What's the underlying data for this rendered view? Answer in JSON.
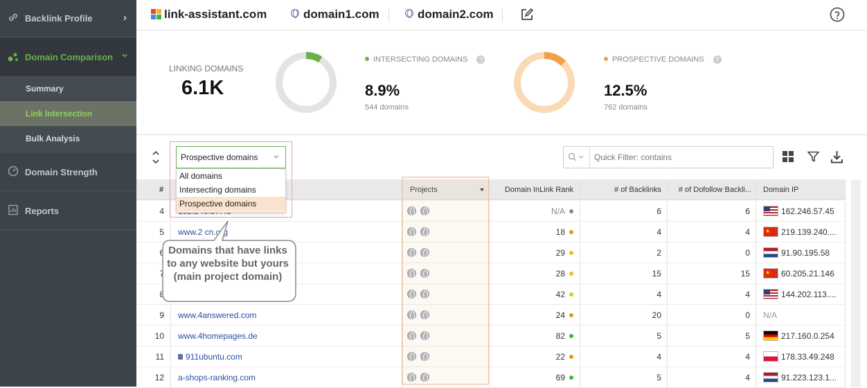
{
  "sidebar": {
    "backlink_profile": "Backlink Profile",
    "domain_comparison": "Domain Comparison",
    "summary": "Summary",
    "link_intersection": "Link Intersection",
    "bulk_analysis": "Bulk Analysis",
    "domain_strength": "Domain Strength",
    "reports": "Reports"
  },
  "topbar": {
    "main_domain": "link-assistant.com",
    "domain1": "domain1.com",
    "domain2": "domain2.com"
  },
  "stats": {
    "linking_label": "LINKING DOMAINS",
    "linking_value": "6.1K",
    "intersecting_label": "INTERSECTING DOMAINS",
    "intersecting_value": "8.9%",
    "intersecting_fraction": 0.089,
    "intersecting_sub": "544 domains",
    "prospective_label": "PROSPECTIVE DOMAINS",
    "prospective_value": "12.5%",
    "prospective_fraction": 0.125,
    "prospective_sub": "762 domains"
  },
  "filter": {
    "selected": "Prospective domains",
    "options": [
      "All domains",
      "Intersecting domains",
      "Prospective domains"
    ],
    "quick_filter_placeholder": "Quick Filter: contains"
  },
  "callout": "Domains that have links to any website but yours (main project domain)",
  "table": {
    "headers": {
      "num": "#",
      "projects": "Projects",
      "inlink_rank": "Domain InLink Rank",
      "backlinks": "# of Backlinks",
      "dofollow": "# of Dofollow Backli...",
      "ip": "Domain IP"
    },
    "rows": [
      {
        "num": "4",
        "domain": "192.240.37.45",
        "rank": "N/A",
        "rank_color": "#888888",
        "backlinks": "6",
        "dofollow": "6",
        "ip": "162.246.57.45",
        "flag": "us"
      },
      {
        "num": "5",
        "domain": "www.2 cn.org",
        "rank": "18",
        "rank_color": "#e8941a",
        "backlinks": "4",
        "dofollow": "4",
        "ip": "219.139.240....",
        "flag": "cn"
      },
      {
        "num": "6",
        "domain": "",
        "rank": "29",
        "rank_color": "#e6c21c",
        "backlinks": "2",
        "dofollow": "0",
        "ip": "91.90.195.58",
        "flag": "nl"
      },
      {
        "num": "7",
        "domain": "",
        "rank": "28",
        "rank_color": "#e6c21c",
        "backlinks": "15",
        "dofollow": "15",
        "ip": "60.205.21.146",
        "flag": "cn"
      },
      {
        "num": "8",
        "domain": "",
        "rank": "42",
        "rank_color": "#c9d61c",
        "backlinks": "4",
        "dofollow": "4",
        "ip": "144.202.113....",
        "flag": "us"
      },
      {
        "num": "9",
        "domain": "www.4answered.com",
        "rank": "24",
        "rank_color": "#e8941a",
        "backlinks": "20",
        "dofollow": "0",
        "ip": "N/A",
        "flag": ""
      },
      {
        "num": "10",
        "domain": "www.4homepages.de",
        "rank": "82",
        "rank_color": "#3cb83c",
        "backlinks": "5",
        "dofollow": "5",
        "ip": "217.160.0.254",
        "flag": "de"
      },
      {
        "num": "11",
        "domain": "911ubuntu.com",
        "rank": "22",
        "rank_color": "#e8941a",
        "backlinks": "4",
        "dofollow": "4",
        "ip": "178.33.49.248",
        "flag": "pl"
      },
      {
        "num": "12",
        "domain": "a-shops-ranking.com",
        "rank": "69",
        "rank_color": "#3cb83c",
        "backlinks": "5",
        "dofollow": "4",
        "ip": "91.223.123.1...",
        "flag": "nl"
      }
    ]
  },
  "colors": {
    "sidebar_bg": "#3c4349",
    "accent_green": "#6ab04c",
    "intersect_donut": "#6ab04c",
    "prospect_donut": "#f0a046",
    "highlight": "#f2a37a"
  }
}
